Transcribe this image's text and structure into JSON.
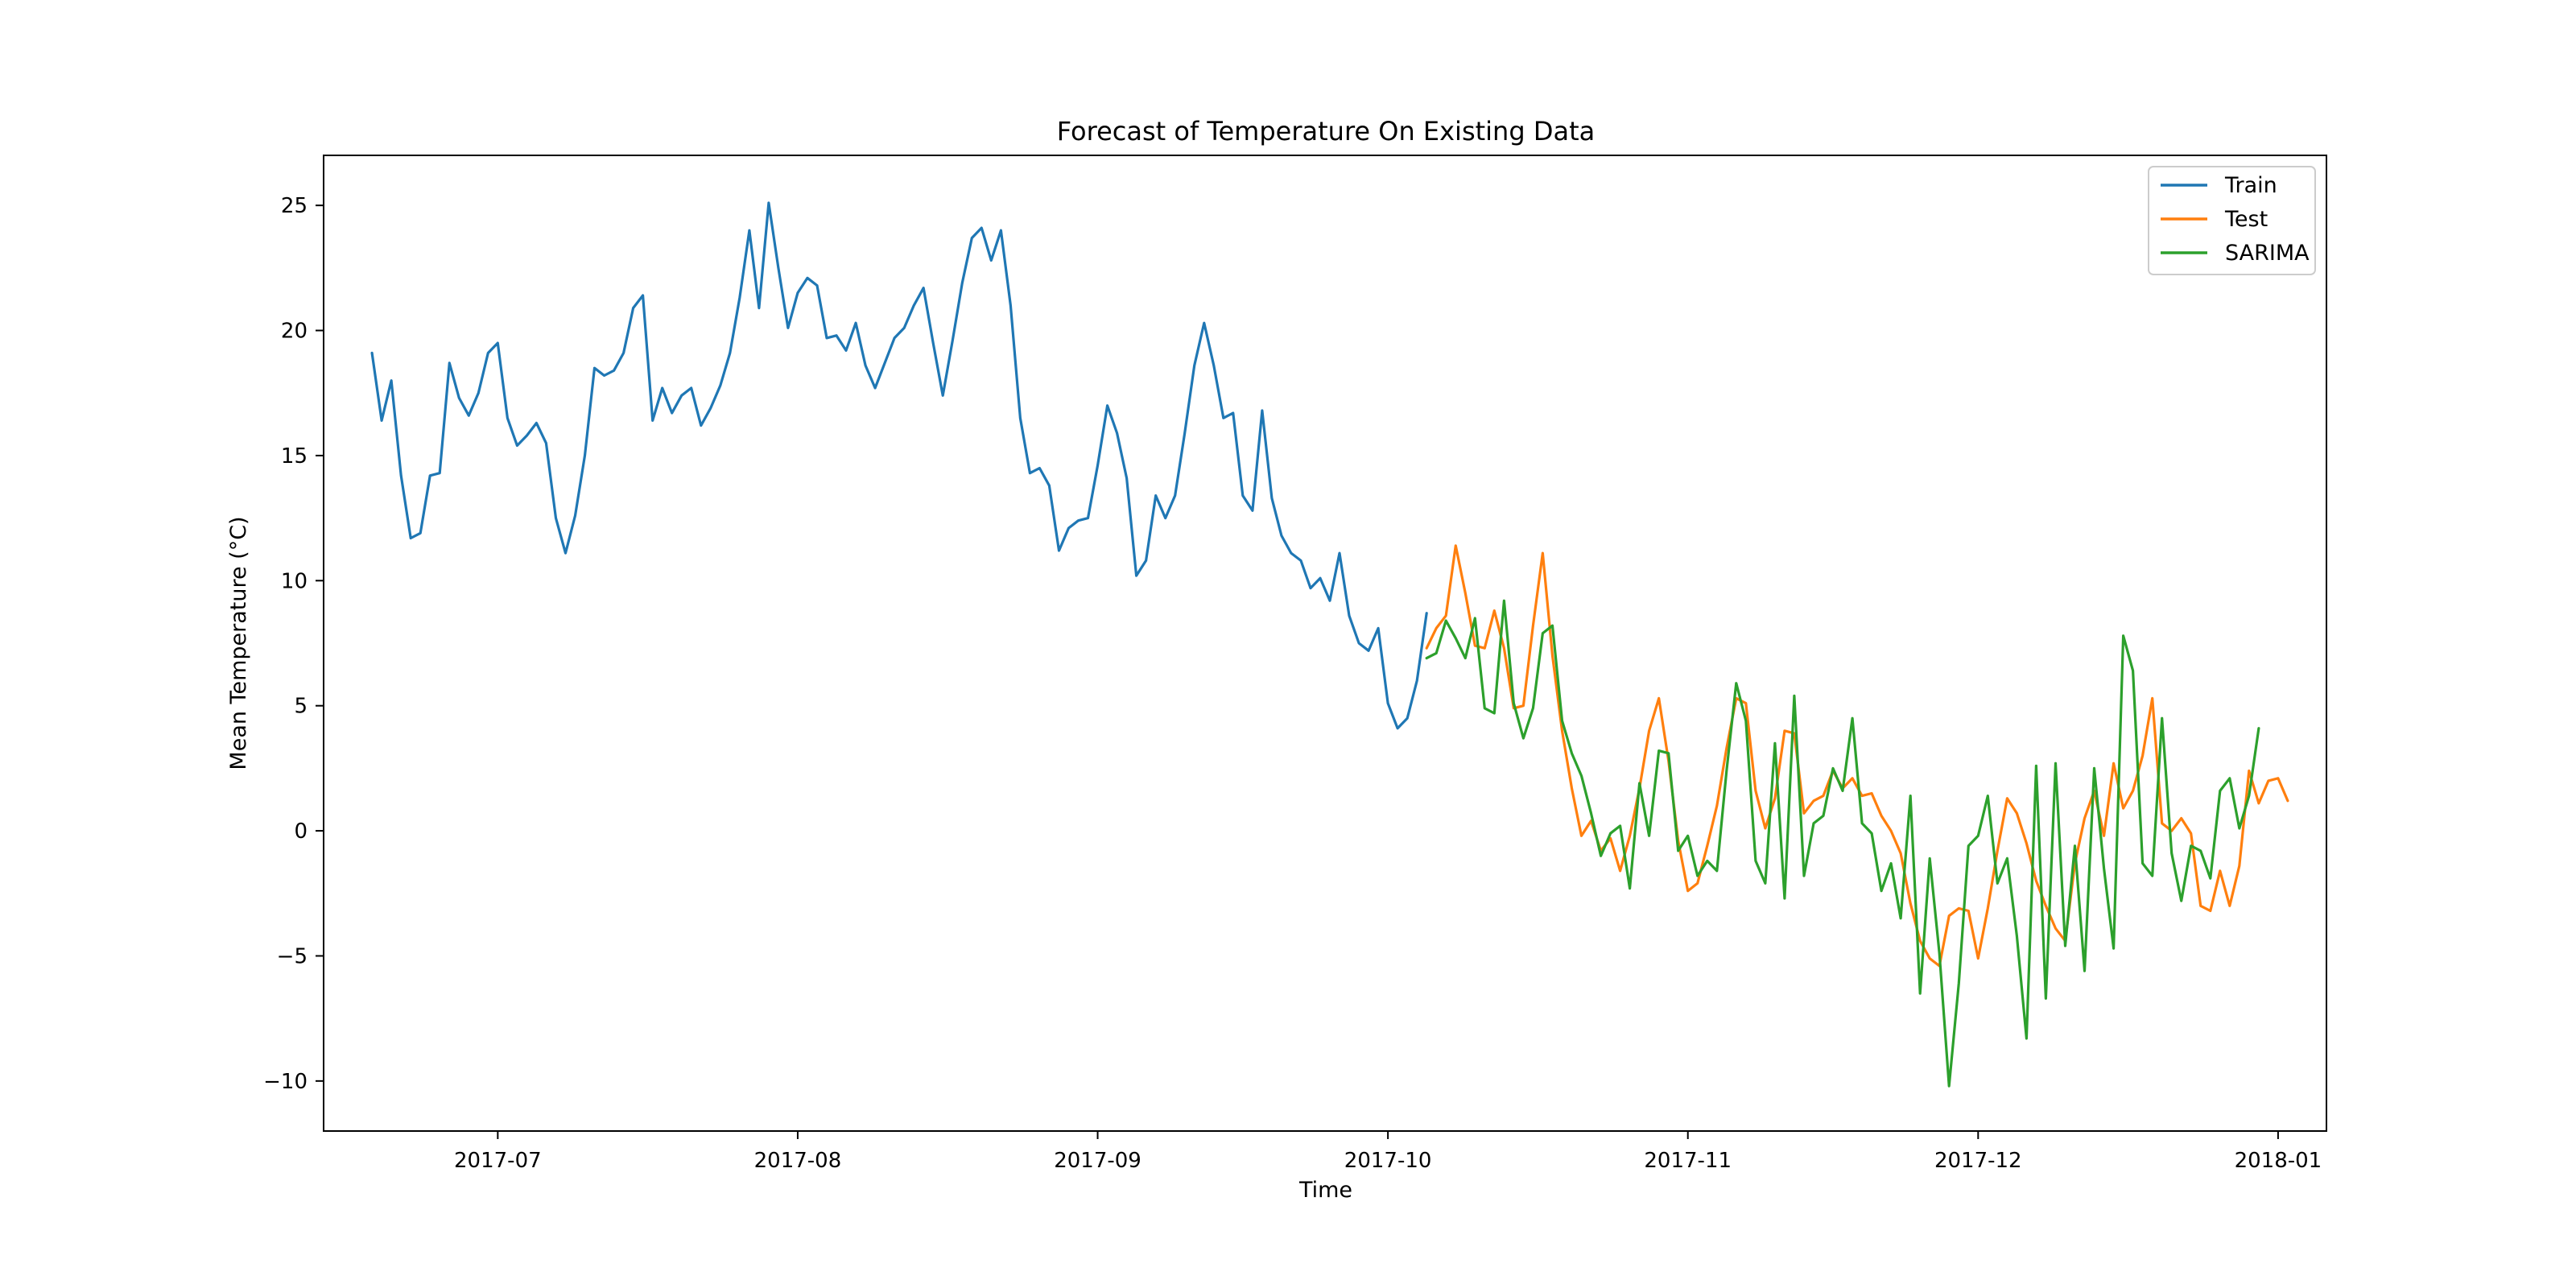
{
  "chart_data": {
    "type": "line",
    "title": "Forecast of Temperature On Existing Data",
    "xlabel": "Time",
    "ylabel": "Mean Temperature (°C)",
    "xlim": [
      "2017-06-13",
      "2018-01-06"
    ],
    "ylim": [
      -12,
      27
    ],
    "x_ticks": [
      {
        "date": "2017-07-01",
        "label": "2017-07"
      },
      {
        "date": "2017-08-01",
        "label": "2017-08"
      },
      {
        "date": "2017-09-01",
        "label": "2017-09"
      },
      {
        "date": "2017-10-01",
        "label": "2017-10"
      },
      {
        "date": "2017-11-01",
        "label": "2017-11"
      },
      {
        "date": "2017-12-01",
        "label": "2017-12"
      },
      {
        "date": "2018-01-01",
        "label": "2018-01"
      }
    ],
    "y_ticks": [
      -10,
      -5,
      0,
      5,
      10,
      15,
      20,
      25
    ],
    "grid": false,
    "legend_position": "top-right",
    "series": [
      {
        "name": "Train",
        "color": "#1f77b4",
        "start": "2017-06-18",
        "values": [
          19.1,
          16.4,
          18.0,
          14.2,
          11.7,
          11.9,
          14.2,
          14.3,
          18.7,
          17.3,
          16.6,
          17.5,
          19.1,
          19.5,
          16.5,
          15.4,
          15.8,
          16.3,
          15.5,
          12.5,
          11.1,
          12.6,
          15.0,
          18.5,
          18.2,
          18.4,
          19.1,
          20.9,
          21.4,
          16.4,
          17.7,
          16.7,
          17.4,
          17.7,
          16.2,
          16.9,
          17.8,
          19.1,
          21.3,
          24.0,
          20.9,
          25.1,
          22.5,
          20.1,
          21.5,
          22.1,
          21.8,
          19.7,
          19.8,
          19.2,
          20.3,
          18.6,
          17.7,
          18.7,
          19.7,
          20.1,
          21.0,
          21.7,
          19.5,
          17.4,
          19.6,
          21.9,
          23.7,
          24.1,
          22.8,
          24.0,
          21.0,
          16.5,
          14.3,
          14.5,
          13.8,
          11.2,
          12.1,
          12.4,
          12.5,
          14.6,
          17.0,
          15.9,
          14.1,
          10.2,
          10.8,
          13.4,
          12.5,
          13.4,
          15.9,
          18.6,
          20.3,
          18.6,
          16.5,
          16.7,
          13.4,
          12.8,
          16.8,
          13.3,
          11.8,
          11.1,
          10.8,
          9.7,
          10.1,
          9.2,
          11.1,
          8.6,
          7.5,
          7.2,
          8.1,
          5.1,
          4.1,
          4.5,
          6.0,
          8.7
        ]
      },
      {
        "name": "Test",
        "color": "#ff7f0e",
        "start": "2017-10-05",
        "values": [
          7.3,
          8.1,
          8.6,
          11.4,
          9.5,
          7.4,
          7.3,
          8.8,
          7.3,
          4.9,
          5.0,
          8.2,
          11.1,
          7.0,
          4.0,
          1.7,
          -0.2,
          0.4,
          -0.8,
          -0.3,
          -1.6,
          -0.2,
          1.7,
          4.0,
          5.3,
          2.8,
          -0.4,
          -2.4,
          -2.1,
          -0.6,
          1.0,
          3.3,
          5.3,
          5.1,
          1.6,
          0.1,
          1.3,
          4.0,
          3.9,
          0.7,
          1.2,
          1.4,
          2.4,
          1.7,
          2.1,
          1.4,
          1.5,
          0.6,
          0.0,
          -0.9,
          -2.9,
          -4.4,
          -5.1,
          -5.4,
          -3.4,
          -3.1,
          -3.2,
          -5.1,
          -3.1,
          -0.8,
          1.3,
          0.7,
          -0.5,
          -2.0,
          -3.0,
          -3.9,
          -4.4,
          -1.3,
          0.5,
          1.6,
          -0.2,
          2.7,
          0.9,
          1.6,
          3.0,
          5.3,
          0.3,
          0.0,
          0.5,
          -0.1,
          -3.0,
          -3.2,
          -1.6,
          -3.0,
          -1.4,
          2.4,
          1.1,
          2.0,
          2.1,
          1.2
        ]
      },
      {
        "name": "SARIMA",
        "color": "#2ca02c",
        "start": "2017-10-05",
        "values": [
          6.9,
          7.1,
          8.4,
          7.7,
          6.9,
          8.5,
          4.9,
          4.7,
          9.2,
          5.1,
          3.7,
          4.9,
          7.9,
          8.2,
          4.4,
          3.1,
          2.2,
          0.7,
          -1.0,
          -0.1,
          0.2,
          -2.3,
          1.9,
          -0.2,
          3.2,
          3.1,
          -0.8,
          -0.2,
          -1.8,
          -1.2,
          -1.6,
          2.4,
          5.9,
          4.4,
          -1.2,
          -2.1,
          3.5,
          -2.7,
          5.4,
          -1.8,
          0.3,
          0.6,
          2.5,
          1.6,
          4.5,
          0.3,
          -0.1,
          -2.4,
          -1.3,
          -3.5,
          1.4,
          -6.5,
          -1.1,
          -4.9,
          -10.2,
          -6.1,
          -0.6,
          -0.2,
          1.4,
          -2.1,
          -1.1,
          -4.2,
          -8.3,
          2.6,
          -6.7,
          2.7,
          -4.6,
          -0.6,
          -5.6,
          2.5,
          -1.5,
          -4.7,
          7.8,
          6.4,
          -1.3,
          -1.8,
          4.5,
          -0.9,
          -2.8,
          -0.6,
          -0.8,
          -1.9,
          1.6,
          2.1,
          0.1,
          1.4,
          4.1
        ]
      }
    ]
  }
}
